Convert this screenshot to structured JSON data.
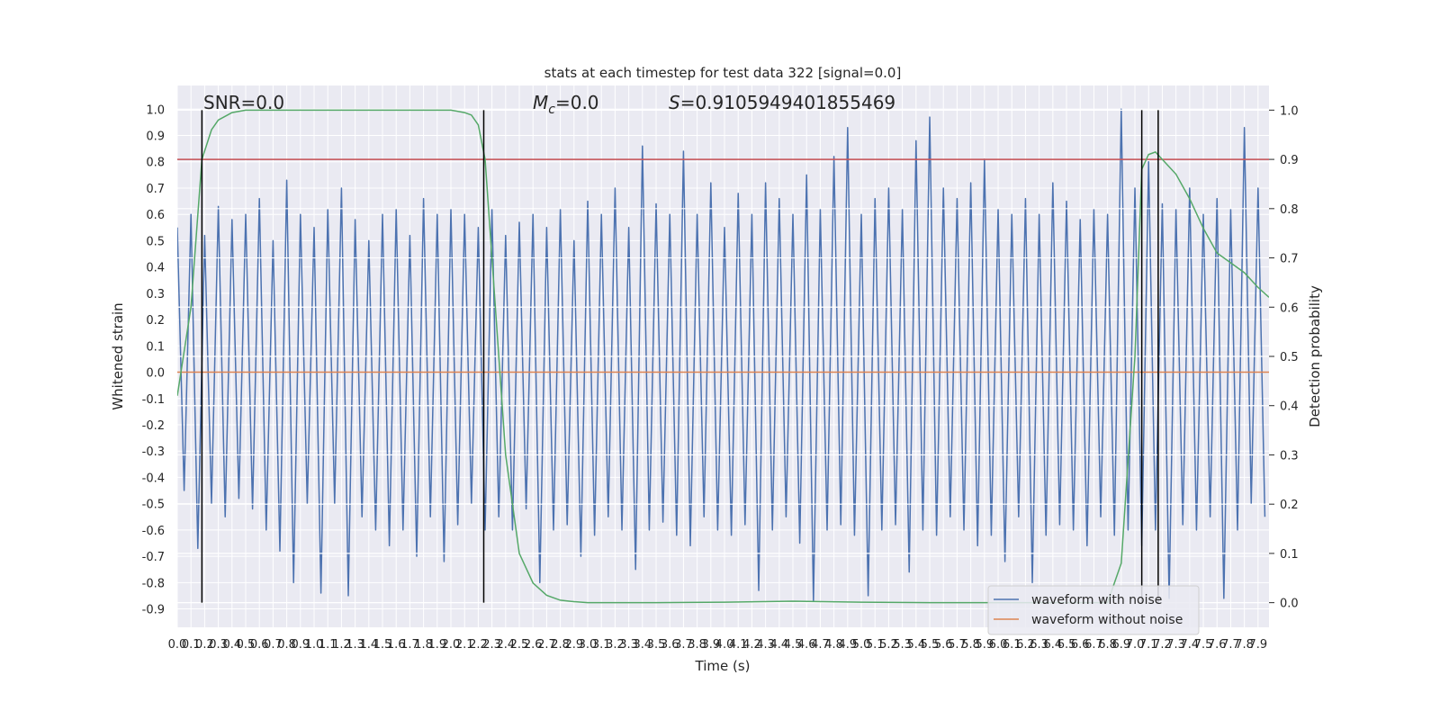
{
  "chart_data": {
    "type": "line",
    "title": "stats at each timestep for test data 322 [signal=0.0]",
    "xlabel": "Time (s)",
    "ylabel": "Whitened strain",
    "y2label": "Detection probability",
    "annotations": [
      {
        "text": "SNR=0.0"
      },
      {
        "symbol": "M",
        "subscript": "c",
        "text": "=0.0"
      },
      {
        "symbol": "S",
        "text": "=0.9105949401855469"
      }
    ],
    "xlim": [
      0,
      7.98
    ],
    "ylim": [
      -0.97,
      1.09
    ],
    "y2lim": [
      -0.05,
      1.05
    ],
    "xticks": [
      {
        "value": 0,
        "label": "0.0"
      },
      0.1,
      0.2,
      0.3,
      0.4,
      0.5,
      0.6,
      0.7,
      0.8,
      0.9,
      {
        "value": 1,
        "label": "1.0"
      },
      1.1,
      1.2,
      1.3,
      1.4,
      1.5,
      1.6,
      1.7,
      1.8,
      1.9,
      {
        "value": 2,
        "label": "2.0"
      },
      2.1,
      2.2,
      2.3,
      2.4,
      2.5,
      2.6,
      2.7,
      2.8,
      2.9,
      {
        "value": 3,
        "label": "3.0"
      },
      3.1,
      3.2,
      3.3,
      3.4,
      3.5,
      3.6,
      3.7,
      3.8,
      3.9,
      {
        "value": 4,
        "label": "4.0"
      },
      4.1,
      4.2,
      4.3,
      4.4,
      4.5,
      4.6,
      4.7,
      4.8,
      4.9,
      {
        "value": 5,
        "label": "5.0"
      },
      5.1,
      5.2,
      5.3,
      5.4,
      5.5,
      5.6,
      5.7,
      5.8,
      5.9,
      {
        "value": 6,
        "label": "6.0"
      },
      6.1,
      6.2,
      6.3,
      6.4,
      6.5,
      6.6,
      6.7,
      6.8,
      6.9,
      {
        "value": 7,
        "label": "7.0"
      },
      7.1,
      7.2,
      7.3,
      7.4,
      7.5,
      7.6,
      7.7,
      7.8,
      7.9
    ],
    "yticks": [
      -0.9,
      -0.8,
      -0.7,
      -0.6,
      -0.5,
      -0.4,
      -0.3,
      -0.2,
      -0.1,
      {
        "value": 0,
        "label": "0.0"
      },
      0.1,
      0.2,
      0.3,
      0.4,
      0.5,
      0.6,
      0.7,
      0.8,
      0.9,
      {
        "value": 1,
        "label": "1.0"
      }
    ],
    "y2ticks": [
      {
        "value": 0,
        "label": "0.0"
      },
      0.1,
      0.2,
      0.3,
      0.4,
      0.5,
      0.6,
      0.7,
      0.8,
      0.9,
      {
        "value": 1,
        "label": "1.0"
      }
    ],
    "grid": true,
    "legend": "lower right",
    "series": [
      {
        "name": "waveform with noise",
        "color": "#4c72b0",
        "x": [
          0,
          0.05,
          0.1,
          0.15,
          0.2,
          0.25,
          0.3,
          0.35,
          0.4,
          0.45,
          0.5,
          0.55,
          0.6,
          0.65,
          0.7,
          0.75,
          0.8,
          0.85,
          0.9,
          0.95,
          1,
          1.05,
          1.1,
          1.15,
          1.2,
          1.25,
          1.3,
          1.35,
          1.4,
          1.45,
          1.5,
          1.55,
          1.6,
          1.65,
          1.7,
          1.75,
          1.8,
          1.85,
          1.9,
          1.95,
          2,
          2.05,
          2.1,
          2.15,
          2.2,
          2.25,
          2.3,
          2.35,
          2.4,
          2.45,
          2.5,
          2.55,
          2.6,
          2.65,
          2.7,
          2.75,
          2.8,
          2.85,
          2.9,
          2.95,
          3,
          3.05,
          3.1,
          3.15,
          3.2,
          3.25,
          3.3,
          3.35,
          3.4,
          3.45,
          3.5,
          3.55,
          3.6,
          3.65,
          3.7,
          3.75,
          3.8,
          3.85,
          3.9,
          3.95,
          4,
          4.05,
          4.1,
          4.15,
          4.2,
          4.25,
          4.3,
          4.35,
          4.4,
          4.45,
          4.5,
          4.55,
          4.6,
          4.65,
          4.7,
          4.75,
          4.8,
          4.85,
          4.9,
          4.95,
          5,
          5.05,
          5.1,
          5.15,
          5.2,
          5.25,
          5.3,
          5.35,
          5.4,
          5.45,
          5.5,
          5.55,
          5.6,
          5.65,
          5.7,
          5.75,
          5.8,
          5.85,
          5.9,
          5.95,
          6,
          6.05,
          6.1,
          6.15,
          6.2,
          6.25,
          6.3,
          6.35,
          6.4,
          6.45,
          6.5,
          6.55,
          6.6,
          6.65,
          6.7,
          6.75,
          6.8,
          6.85,
          6.9,
          6.95,
          7,
          7.05,
          7.1,
          7.15,
          7.2,
          7.25,
          7.3,
          7.35,
          7.4,
          7.45,
          7.5,
          7.55,
          7.6,
          7.65,
          7.7,
          7.75,
          7.8,
          7.85,
          7.9,
          7.95
        ],
        "values": [
          0.55,
          -0.45,
          0.6,
          -0.67,
          0.52,
          -0.5,
          0.63,
          -0.55,
          0.58,
          -0.48,
          0.6,
          -0.52,
          0.66,
          -0.6,
          0.5,
          -0.68,
          0.73,
          -0.8,
          0.6,
          -0.5,
          0.55,
          -0.84,
          0.62,
          -0.5,
          0.7,
          -0.85,
          0.58,
          -0.55,
          0.5,
          -0.6,
          0.6,
          -0.66,
          0.62,
          -0.6,
          0.52,
          -0.7,
          0.66,
          -0.55,
          0.6,
          -0.72,
          0.62,
          -0.58,
          0.6,
          -0.5,
          0.55,
          -0.6,
          0.62,
          -0.55,
          0.52,
          -0.6,
          0.57,
          -0.52,
          0.6,
          -0.8,
          0.55,
          -0.6,
          0.62,
          -0.58,
          0.5,
          -0.7,
          0.65,
          -0.62,
          0.6,
          -0.55,
          0.7,
          -0.6,
          0.55,
          -0.75,
          0.86,
          -0.6,
          0.64,
          -0.57,
          0.6,
          -0.62,
          0.84,
          -0.66,
          0.6,
          -0.55,
          0.72,
          -0.6,
          0.55,
          -0.62,
          0.68,
          -0.58,
          0.6,
          -0.83,
          0.72,
          -0.6,
          0.66,
          -0.55,
          0.6,
          -0.65,
          0.75,
          -0.87,
          0.62,
          -0.6,
          0.82,
          -0.58,
          0.93,
          -0.62,
          0.6,
          -0.85,
          0.66,
          -0.6,
          0.7,
          -0.58,
          0.62,
          -0.76,
          0.88,
          -0.6,
          0.97,
          -0.62,
          0.7,
          -0.55,
          0.66,
          -0.6,
          0.72,
          -0.66,
          0.81,
          -0.62,
          0.62,
          -0.72,
          0.6,
          -0.55,
          0.66,
          -0.8,
          0.6,
          -0.62,
          0.72,
          -0.58,
          0.65,
          -0.6,
          0.58,
          -0.66,
          0.62,
          -0.55,
          0.6,
          -0.62,
          1.0,
          -0.6,
          0.7,
          -0.66,
          0.8,
          -0.6,
          0.64,
          -0.86,
          0.62,
          -0.58,
          0.7,
          -0.6,
          0.6,
          -0.55,
          0.66,
          -0.86,
          0.62,
          -0.6,
          0.93,
          -0.5,
          0.7,
          -0.55
        ]
      },
      {
        "name": "waveform without noise",
        "color": "#dd8452",
        "x": [
          0,
          7.98
        ],
        "values": [
          0,
          0
        ]
      }
    ],
    "probability": {
      "color": "#55a868",
      "axis": "y2",
      "x": [
        0,
        0.1,
        0.18,
        0.25,
        0.3,
        0.4,
        0.5,
        0.7,
        1.0,
        1.5,
        2.0,
        2.1,
        2.15,
        2.2,
        2.25,
        2.3,
        2.4,
        2.5,
        2.6,
        2.7,
        2.8,
        2.9,
        3.0,
        3.5,
        4.0,
        4.5,
        5.0,
        5.5,
        6.0,
        6.5,
        6.8,
        6.9,
        7.0,
        7.05,
        7.1,
        7.15,
        7.2,
        7.3,
        7.4,
        7.5,
        7.6,
        7.7,
        7.8,
        7.9,
        7.98
      ],
      "values": [
        0.42,
        0.6,
        0.9,
        0.96,
        0.98,
        0.995,
        1.0,
        1.0,
        1.0,
        1.0,
        1.0,
        0.995,
        0.99,
        0.97,
        0.9,
        0.7,
        0.3,
        0.1,
        0.04,
        0.015,
        0.005,
        0.002,
        0.0,
        0.0,
        0.001,
        0.003,
        0.001,
        0.0,
        0.0,
        0.0,
        0.0,
        0.08,
        0.5,
        0.88,
        0.91,
        0.915,
        0.9,
        0.87,
        0.82,
        0.76,
        0.71,
        0.69,
        0.67,
        0.64,
        0.62
      ]
    },
    "hline": {
      "value": 0.9,
      "axis": "y2",
      "color": "#c44e52"
    },
    "vlines": {
      "x": [
        0.18,
        2.24,
        7.05,
        7.17
      ],
      "ymin": 0,
      "ymax": 1,
      "axis": "y2",
      "color": "#000000"
    }
  }
}
